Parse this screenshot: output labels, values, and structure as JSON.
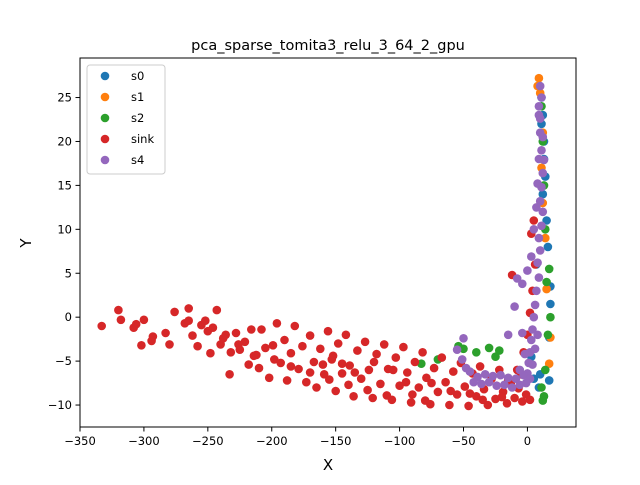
{
  "chart_data": {
    "type": "scatter",
    "title": "pca_sparse_tomita3_relu_3_64_2_gpu",
    "xlabel": "X",
    "ylabel": "Y",
    "xlim": [
      -350,
      38
    ],
    "ylim": [
      -12.5,
      29.5
    ],
    "xticks": [
      -350,
      -300,
      -250,
      -200,
      -150,
      -100,
      -50,
      0
    ],
    "yticks": [
      -10,
      -5,
      0,
      5,
      10,
      15,
      20,
      25
    ],
    "grid": false,
    "legend_position": "top-left",
    "series": [
      {
        "name": "s0",
        "color": "#1f77b4",
        "points": [
          [
            18,
            3.5
          ],
          [
            18,
            1.5
          ],
          [
            17,
            -2.3
          ],
          [
            17,
            -7.2
          ],
          [
            16,
            8
          ],
          [
            15,
            11
          ],
          [
            14,
            16
          ],
          [
            13,
            20
          ],
          [
            12,
            23
          ],
          [
            11,
            25
          ],
          [
            10,
            -6.5
          ],
          [
            9,
            -8
          ],
          [
            5,
            -7
          ],
          [
            3,
            -4.5
          ],
          [
            7,
            6
          ],
          [
            12,
            14
          ],
          [
            13,
            18
          ],
          [
            11,
            22
          ]
        ]
      },
      {
        "name": "s1",
        "color": "#ff7f0e",
        "points": [
          [
            9,
            27.2
          ],
          [
            8,
            26.3
          ],
          [
            10,
            25.5
          ],
          [
            17,
            -5.3
          ],
          [
            18,
            -2.3
          ],
          [
            15,
            3.2
          ],
          [
            14,
            9
          ],
          [
            12,
            13
          ],
          [
            11,
            17
          ],
          [
            12,
            21
          ]
        ]
      },
      {
        "name": "s2",
        "color": "#2ca02c",
        "points": [
          [
            17,
            5.5
          ],
          [
            18,
            0
          ],
          [
            16,
            -2
          ],
          [
            14,
            -6
          ],
          [
            13,
            -9
          ],
          [
            12,
            -9.5
          ],
          [
            11,
            -8
          ],
          [
            15,
            4
          ],
          [
            14,
            10
          ],
          [
            13,
            15
          ],
          [
            12,
            20
          ],
          [
            11,
            24
          ],
          [
            -54,
            -3.3
          ],
          [
            -50,
            -3.6
          ],
          [
            -70,
            -4.8
          ],
          [
            -83,
            -5.3
          ],
          [
            -40,
            -4
          ],
          [
            -30,
            -3.5
          ],
          [
            -25,
            -4.5
          ],
          [
            -22,
            -3.8
          ]
        ]
      },
      {
        "name": "sink",
        "color": "#d62728",
        "points": [
          [
            -333,
            -1
          ],
          [
            -320,
            0.8
          ],
          [
            -318,
            -0.3
          ],
          [
            -308,
            -1.2
          ],
          [
            -306,
            -0.8
          ],
          [
            -300,
            -0.3
          ],
          [
            -302,
            -3.2
          ],
          [
            -294,
            -2.7
          ],
          [
            -293,
            -2.2
          ],
          [
            -283,
            -1.8
          ],
          [
            -280,
            -3.1
          ],
          [
            -276,
            0.6
          ],
          [
            -268,
            -0.7
          ],
          [
            -265,
            1
          ],
          [
            -262,
            -2.1
          ],
          [
            -258,
            -3.3
          ],
          [
            -255,
            -0.9
          ],
          [
            -252,
            -0.4
          ],
          [
            -248,
            -4.1
          ],
          [
            -246,
            -1.2
          ],
          [
            -243,
            0.8
          ],
          [
            -240,
            -3.1
          ],
          [
            -236,
            -2
          ],
          [
            -233,
            -6.5
          ],
          [
            -232,
            -4
          ],
          [
            -228,
            -1.8
          ],
          [
            -225,
            -3.7
          ],
          [
            -221,
            -2.8
          ],
          [
            -218,
            -5.4
          ],
          [
            -216,
            -1.4
          ],
          [
            -214,
            -4.4
          ],
          [
            -210,
            -5.8
          ],
          [
            -208,
            -1.4
          ],
          [
            -205,
            -3.5
          ],
          [
            -202,
            -6.9
          ],
          [
            -199,
            -3.2
          ],
          [
            -196,
            -0.7
          ],
          [
            -193,
            -5.2
          ],
          [
            -190,
            -2.6
          ],
          [
            -188,
            -7.2
          ],
          [
            -185,
            -4.1
          ],
          [
            -182,
            -1
          ],
          [
            -179,
            -5.9
          ],
          [
            -176,
            -3.3
          ],
          [
            -173,
            -7.4
          ],
          [
            -170,
            -2.1
          ],
          [
            -167,
            -5.1
          ],
          [
            -165,
            -8
          ],
          [
            -162,
            -3.6
          ],
          [
            -159,
            -6.5
          ],
          [
            -156,
            -1.6
          ],
          [
            -153,
            -4.8
          ],
          [
            -150,
            -8.4
          ],
          [
            -148,
            -3
          ],
          [
            -145,
            -6.4
          ],
          [
            -142,
            -2
          ],
          [
            -139,
            -5.5
          ],
          [
            -136,
            -9
          ],
          [
            -133,
            -3.8
          ],
          [
            -130,
            -7
          ],
          [
            -127,
            -2.8
          ],
          [
            -124,
            -6
          ],
          [
            -121,
            -9.2
          ],
          [
            -118,
            -4.2
          ],
          [
            -115,
            -7.6
          ],
          [
            -112,
            -3.1
          ],
          [
            -109,
            -5.9
          ],
          [
            -106,
            -9.4
          ],
          [
            -103,
            -4.6
          ],
          [
            -100,
            -7.8
          ],
          [
            -97,
            -3.4
          ],
          [
            -94,
            -6.3
          ],
          [
            -91,
            -9.7
          ],
          [
            -88,
            -5.1
          ],
          [
            -85,
            -8
          ],
          [
            -82,
            -4
          ],
          [
            -79,
            -6.9
          ],
          [
            -76,
            -9.9
          ],
          [
            -73,
            -5.8
          ],
          [
            -70,
            -8.5
          ],
          [
            -67,
            -4.6
          ],
          [
            -64,
            -7.4
          ],
          [
            -61,
            -10
          ],
          [
            -58,
            -6.2
          ],
          [
            -55,
            -8.8
          ],
          [
            -52,
            -5.2
          ],
          [
            -49,
            -7.9
          ],
          [
            -46,
            -10.1
          ],
          [
            -43,
            -6.4
          ],
          [
            -40,
            -9
          ],
          [
            -37,
            -5.6
          ],
          [
            -34,
            -8.2
          ],
          [
            -31,
            -10
          ],
          [
            -28,
            -7
          ],
          [
            -25,
            -9.3
          ],
          [
            -22,
            -6
          ],
          [
            -19,
            -8.5
          ],
          [
            -16,
            -9.8
          ],
          [
            -13,
            -7.5
          ],
          [
            -10,
            -9.2
          ],
          [
            -7,
            -8.1
          ],
          [
            -4,
            -9.6
          ],
          [
            -1,
            -8.8
          ],
          [
            2,
            -9.4
          ],
          [
            -12,
            4.8
          ],
          [
            -5,
            -6.5
          ],
          [
            -3,
            -4
          ],
          [
            0,
            -2
          ],
          [
            2,
            0.5
          ],
          [
            4,
            3
          ],
          [
            6,
            6
          ],
          [
            3,
            9.5
          ],
          [
            5,
            11
          ],
          [
            -80,
            -9.5
          ],
          [
            -90,
            -8.8
          ],
          [
            -110,
            -8.9
          ],
          [
            -125,
            -8.3
          ],
          [
            -140,
            -7.7
          ],
          [
            -155,
            -7.1
          ],
          [
            -170,
            -6.3
          ],
          [
            -185,
            -5.6
          ],
          [
            -198,
            -4.8
          ],
          [
            -212,
            -4.3
          ],
          [
            -226,
            -3.1
          ],
          [
            -238,
            -2.4
          ],
          [
            -250,
            -1.6
          ],
          [
            -265,
            -0.4
          ],
          [
            -152,
            -4.4
          ],
          [
            -160,
            -5.4
          ],
          [
            -145,
            -5.3
          ],
          [
            -135,
            -6.3
          ],
          [
            -120,
            -5.1
          ],
          [
            -105,
            -6
          ],
          [
            -95,
            -7.4
          ],
          [
            -75,
            -7.5
          ],
          [
            -60,
            -8.4
          ],
          [
            -45,
            -8.7
          ],
          [
            -35,
            -9.4
          ],
          [
            -20,
            -9.1
          ],
          [
            -15,
            -7.2
          ],
          [
            -8,
            -6
          ]
        ]
      },
      {
        "name": "s4",
        "color": "#9467bd",
        "points": [
          [
            10,
            26.3
          ],
          [
            11,
            25
          ],
          [
            9,
            24
          ],
          [
            10,
            22.6
          ],
          [
            12,
            20.5
          ],
          [
            11,
            19
          ],
          [
            13,
            17.9
          ],
          [
            12,
            16.4
          ],
          [
            11,
            14.8
          ],
          [
            10,
            13.2
          ],
          [
            12,
            12
          ],
          [
            11,
            10.4
          ],
          [
            9,
            9
          ],
          [
            10,
            7.6
          ],
          [
            8,
            6.2
          ],
          [
            9,
            4.5
          ],
          [
            7,
            3
          ],
          [
            6,
            1.4
          ],
          [
            5,
            0
          ],
          [
            4,
            -1.4
          ],
          [
            3,
            -2.6
          ],
          [
            2,
            -4
          ],
          [
            1,
            -5.2
          ],
          [
            0,
            -6.4
          ],
          [
            -1,
            -7.5
          ],
          [
            -3,
            -6.6
          ],
          [
            -6,
            -7.7
          ],
          [
            -9,
            -7
          ],
          [
            -12,
            -8
          ],
          [
            -15,
            -6.9
          ],
          [
            -18,
            -7.7
          ],
          [
            -21,
            -6.6
          ],
          [
            -24,
            -7.8
          ],
          [
            -27,
            -6.7
          ],
          [
            -30,
            -7.4
          ],
          [
            -33,
            -6.5
          ],
          [
            -36,
            -7.6
          ],
          [
            -39,
            -6.8
          ],
          [
            -42,
            -7.4
          ],
          [
            -45,
            -6.2
          ],
          [
            -48,
            -5.8
          ],
          [
            -51,
            -4.8
          ],
          [
            -55,
            -3.7
          ],
          [
            -50,
            -2.4
          ],
          [
            -15,
            -2
          ],
          [
            -10,
            1.2
          ],
          [
            -8,
            4.4
          ],
          [
            -4,
            3.8
          ],
          [
            0,
            5.3
          ],
          [
            3,
            6.9
          ],
          [
            5,
            10
          ],
          [
            7,
            12.5
          ],
          [
            8,
            15.2
          ],
          [
            9,
            18
          ],
          [
            10,
            21
          ],
          [
            9,
            23
          ],
          [
            8,
            -2
          ],
          [
            6,
            -3.6
          ],
          [
            4,
            -5.4
          ],
          [
            2,
            -7
          ],
          [
            -2,
            -4.2
          ],
          [
            -4,
            -1.8
          ],
          [
            -6,
            -6
          ]
        ]
      }
    ]
  }
}
